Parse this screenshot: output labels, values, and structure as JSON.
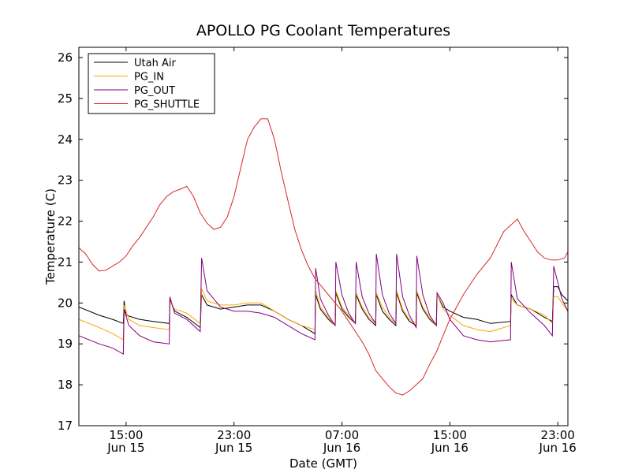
{
  "chart_data": {
    "type": "line",
    "title": "APOLLO PG Coolant Temperatures",
    "xlabel": "Date (GMT)",
    "ylabel": "Temperature (C)",
    "ylim": [
      17,
      26.25
    ],
    "xlim": [
      11.5,
      47.75
    ],
    "x_unit": "hours since Jun 15 00:00 GMT",
    "yticks": [
      17,
      18,
      19,
      20,
      21,
      22,
      23,
      24,
      25,
      26
    ],
    "xticks": [
      {
        "x": 15,
        "time": "15:00",
        "date": "Jun 15"
      },
      {
        "x": 23,
        "time": "23:00",
        "date": "Jun 15"
      },
      {
        "x": 31,
        "time": "07:00",
        "date": "Jun 16"
      },
      {
        "x": 39,
        "time": "15:00",
        "date": "Jun 16"
      },
      {
        "x": 47,
        "time": "23:00",
        "date": "Jun 16"
      }
    ],
    "legend_position": "top-left",
    "grid": false,
    "series": [
      {
        "name": "Utah Air",
        "color": "#000000",
        "x": [
          11.5,
          13.0,
          14.0,
          14.8,
          14.85,
          15.0,
          16.0,
          17.0,
          18.2,
          18.25,
          18.6,
          19.5,
          20.5,
          20.6,
          21.0,
          22.0,
          23.0,
          24.0,
          25.0,
          26.0,
          27.0,
          28.0,
          29.0,
          29.05,
          29.4,
          30.0,
          30.5,
          30.55,
          31.0,
          31.5,
          32.0,
          32.05,
          32.5,
          33.0,
          33.5,
          33.55,
          34.0,
          34.5,
          35.0,
          35.05,
          35.5,
          36.0,
          36.5,
          36.55,
          37.0,
          37.5,
          38.0,
          38.05,
          38.5,
          39.0,
          40.0,
          41.0,
          42.0,
          43.5,
          43.55,
          44.0,
          45.0,
          46.0,
          46.6,
          46.7,
          47.0,
          47.3,
          47.75
        ],
        "y": [
          19.9,
          19.7,
          19.6,
          19.5,
          20.05,
          19.7,
          19.6,
          19.55,
          19.5,
          20.1,
          19.8,
          19.65,
          19.4,
          20.2,
          19.95,
          19.85,
          19.9,
          19.95,
          19.95,
          19.8,
          19.6,
          19.45,
          19.25,
          20.2,
          19.85,
          19.6,
          19.45,
          20.25,
          19.85,
          19.65,
          19.5,
          20.2,
          19.85,
          19.6,
          19.45,
          20.2,
          19.8,
          19.6,
          19.45,
          20.25,
          19.8,
          19.55,
          19.45,
          20.25,
          19.85,
          19.6,
          19.45,
          20.2,
          19.9,
          19.8,
          19.65,
          19.6,
          19.5,
          19.55,
          20.2,
          19.95,
          19.85,
          19.65,
          19.55,
          20.4,
          20.4,
          20.2,
          20.05
        ]
      },
      {
        "name": "PG_IN",
        "color": "#ffa500",
        "x": [
          11.5,
          13.0,
          14.0,
          14.8,
          14.85,
          15.2,
          16.0,
          17.0,
          18.2,
          18.25,
          18.6,
          19.5,
          20.5,
          20.6,
          21.0,
          22.0,
          23.0,
          24.0,
          25.0,
          26.0,
          27.0,
          28.0,
          29.0,
          29.05,
          29.4,
          30.0,
          30.5,
          30.55,
          31.0,
          31.5,
          32.0,
          32.05,
          32.5,
          33.0,
          33.5,
          33.55,
          34.0,
          34.5,
          35.0,
          35.05,
          35.5,
          36.0,
          36.5,
          36.55,
          37.0,
          37.5,
          38.0,
          38.05,
          38.5,
          39.0,
          40.0,
          41.0,
          42.0,
          43.5,
          43.55,
          44.0,
          45.0,
          46.0,
          46.6,
          46.7,
          47.0,
          47.3,
          47.75
        ],
        "y": [
          19.6,
          19.4,
          19.25,
          19.1,
          19.95,
          19.6,
          19.45,
          19.4,
          19.35,
          20.05,
          19.85,
          19.75,
          19.5,
          20.35,
          20.05,
          19.95,
          19.95,
          20.0,
          20.0,
          19.8,
          19.6,
          19.45,
          19.35,
          20.3,
          19.9,
          19.65,
          19.45,
          20.3,
          19.9,
          19.7,
          19.5,
          20.25,
          19.9,
          19.65,
          19.5,
          20.25,
          19.9,
          19.65,
          19.5,
          20.3,
          19.85,
          19.6,
          19.5,
          20.3,
          19.9,
          19.65,
          19.45,
          20.2,
          19.85,
          19.7,
          19.45,
          19.35,
          19.3,
          19.45,
          20.1,
          19.95,
          19.85,
          19.7,
          19.5,
          20.15,
          20.15,
          20.0,
          19.8
        ]
      },
      {
        "name": "PG_OUT",
        "color": "#800080",
        "x": [
          11.5,
          13.0,
          14.0,
          14.8,
          14.85,
          15.2,
          16.0,
          17.0,
          18.2,
          18.25,
          18.6,
          19.5,
          20.5,
          20.6,
          21.0,
          22.0,
          23.0,
          24.0,
          25.0,
          26.0,
          27.0,
          28.0,
          29.0,
          29.05,
          29.4,
          30.0,
          30.5,
          30.55,
          31.0,
          31.5,
          32.0,
          32.05,
          32.5,
          33.0,
          33.5,
          33.55,
          34.0,
          34.5,
          35.0,
          35.05,
          35.5,
          36.0,
          36.5,
          36.55,
          37.0,
          37.5,
          38.0,
          38.05,
          38.5,
          39.0,
          40.0,
          41.0,
          42.0,
          43.5,
          43.55,
          44.0,
          45.0,
          46.0,
          46.6,
          46.7,
          47.0,
          47.3,
          47.75
        ],
        "y": [
          19.2,
          19.0,
          18.9,
          18.75,
          19.85,
          19.45,
          19.2,
          19.05,
          19.0,
          20.15,
          19.75,
          19.6,
          19.3,
          21.1,
          20.3,
          19.9,
          19.8,
          19.8,
          19.75,
          19.65,
          19.45,
          19.25,
          19.1,
          20.85,
          20.1,
          19.7,
          19.45,
          21.0,
          20.2,
          19.75,
          19.5,
          21.0,
          20.15,
          19.75,
          19.5,
          21.2,
          20.2,
          19.75,
          19.5,
          21.2,
          20.15,
          19.7,
          19.4,
          21.15,
          20.2,
          19.7,
          19.45,
          20.25,
          20.0,
          19.6,
          19.2,
          19.1,
          19.05,
          19.1,
          21.0,
          20.1,
          19.75,
          19.45,
          19.2,
          20.9,
          20.5,
          20.1,
          19.8
        ]
      },
      {
        "name": "PG_SHUTTLE",
        "color": "#d62728",
        "x": [
          11.5,
          12.0,
          12.5,
          13.0,
          13.5,
          14.0,
          14.5,
          15.0,
          15.5,
          16.0,
          17.0,
          17.5,
          18.0,
          18.5,
          19.0,
          19.5,
          20.0,
          20.5,
          21.0,
          21.5,
          22.0,
          22.5,
          23.0,
          23.5,
          24.0,
          24.5,
          25.0,
          25.5,
          26.0,
          26.5,
          27.0,
          27.5,
          28.0,
          28.5,
          29.0,
          30.0,
          31.0,
          32.0,
          32.5,
          33.0,
          33.5,
          34.0,
          34.5,
          35.0,
          35.5,
          36.0,
          36.5,
          37.0,
          37.5,
          38.0,
          39.0,
          40.0,
          41.0,
          42.0,
          43.0,
          44.0,
          44.5,
          45.0,
          45.5,
          46.0,
          46.5,
          47.0,
          47.5,
          47.75
        ],
        "y": [
          21.35,
          21.2,
          20.95,
          20.78,
          20.8,
          20.9,
          21.0,
          21.15,
          21.4,
          21.6,
          22.1,
          22.4,
          22.6,
          22.72,
          22.78,
          22.85,
          22.6,
          22.2,
          21.95,
          21.8,
          21.85,
          22.1,
          22.6,
          23.3,
          24.0,
          24.3,
          24.5,
          24.5,
          24.0,
          23.2,
          22.5,
          21.8,
          21.3,
          20.9,
          20.6,
          20.2,
          19.8,
          19.3,
          19.05,
          18.75,
          18.35,
          18.15,
          17.95,
          17.8,
          17.75,
          17.85,
          18.0,
          18.15,
          18.5,
          18.8,
          19.6,
          20.2,
          20.7,
          21.1,
          21.75,
          22.05,
          21.75,
          21.5,
          21.25,
          21.1,
          21.05,
          21.05,
          21.1,
          21.25
        ]
      }
    ]
  }
}
